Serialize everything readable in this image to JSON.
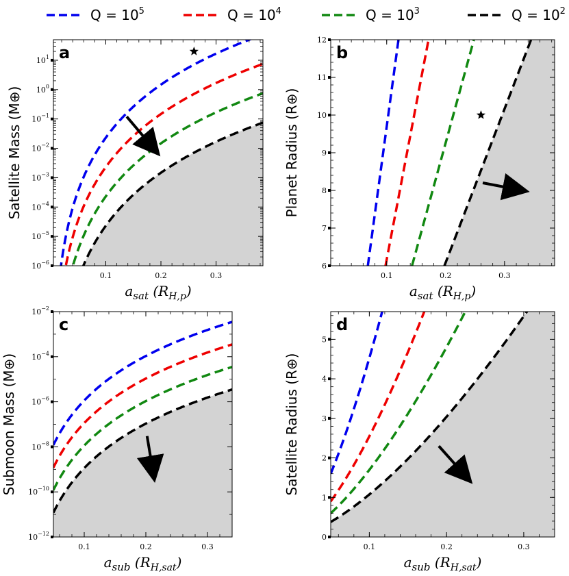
{
  "legend": [
    {
      "label": "Q = 10",
      "exp": "5",
      "color": "#0000ee"
    },
    {
      "label": "Q = 10",
      "exp": "4",
      "color": "#ee0000"
    },
    {
      "label": "Q = 10",
      "exp": "3",
      "color": "#118811"
    },
    {
      "label": "Q = 10",
      "exp": "2",
      "color": "#000000"
    }
  ],
  "colors": {
    "shade": "#d3d3d3",
    "axes": "#000000"
  },
  "chart_data": [
    {
      "panel": "a",
      "type": "line",
      "yscale": "log",
      "xlabel": "a_sat (R_H,p)",
      "ylabel": "Satellite Mass (M⊕)",
      "xlim": [
        0.005,
        0.385
      ],
      "ylim": [
        1e-06,
        50
      ],
      "xticks": [
        0.1,
        0.2,
        0.3
      ],
      "xtick_labels": [
        "0.1",
        "0.2",
        "0.3"
      ],
      "yticks": [
        1e-06,
        1e-05,
        0.0001,
        0.001,
        0.01,
        0.1,
        1,
        10
      ],
      "ytick_labels": [
        [
          "10",
          "−6"
        ],
        [
          "10",
          "−5"
        ],
        [
          "10",
          "−4"
        ],
        [
          "10",
          "−3"
        ],
        [
          "10",
          "−2"
        ],
        [
          "10",
          "−1"
        ],
        [
          "10",
          "0"
        ],
        [
          "10",
          "1"
        ]
      ],
      "series": [
        {
          "name": "Q = 10^5",
          "power": 6.0,
          "coef": 23000.0,
          "xmin": 0.005
        },
        {
          "name": "Q = 10^4",
          "power": 6.0,
          "coef": 2300.0,
          "xmin": 0.008
        },
        {
          "name": "Q = 10^3",
          "power": 6.0,
          "coef": 230.0,
          "xmin": 0.012
        },
        {
          "name": "Q = 10^2",
          "power": 6.0,
          "coef": 23.0,
          "xmin": 0.02
        }
      ],
      "star": [
        0.26,
        20
      ],
      "arrow": {
        "from": [
          0.138,
          0.12
        ],
        "to": [
          0.183,
          0.012
        ]
      }
    },
    {
      "panel": "b",
      "type": "line",
      "yscale": "linear",
      "xlabel": "a_sat (R_H,p)",
      "ylabel": "Planet Radius (R⊕)",
      "xlim": [
        0.005,
        0.385
      ],
      "ylim": [
        6,
        12
      ],
      "xticks": [
        0.1,
        0.2,
        0.3
      ],
      "xtick_labels": [
        "0.1",
        "0.2",
        "0.3"
      ],
      "yticks": [
        6,
        7,
        8,
        9,
        10,
        11,
        12
      ],
      "ytick_labels": [
        "6",
        "7",
        "8",
        "9",
        "10",
        "11",
        "12"
      ],
      "series": [
        {
          "name": "Q = 10^5",
          "x": [
            0.068,
            0.12
          ],
          "y": [
            6,
            12
          ]
        },
        {
          "name": "Q = 10^4",
          "x": [
            0.098,
            0.171
          ],
          "y": [
            6,
            12
          ]
        },
        {
          "name": "Q = 10^3",
          "x": [
            0.143,
            0.248
          ],
          "y": [
            6,
            12
          ]
        },
        {
          "name": "Q = 10^2",
          "x": [
            0.198,
            0.345
          ],
          "y": [
            6,
            12
          ]
        }
      ],
      "star": [
        0.26,
        10
      ],
      "arrow": {
        "from": [
          0.263,
          8.2
        ],
        "to": [
          0.32,
          8.03
        ]
      }
    },
    {
      "panel": "c",
      "type": "line",
      "yscale": "log",
      "xlabel": "a_sub (R_H,sat)",
      "ylabel": "Submoon Mass (M⊕)",
      "xlim": [
        0.05,
        0.34
      ],
      "ylim": [
        1e-12,
        0.01
      ],
      "xticks": [
        0.1,
        0.2,
        0.3
      ],
      "xtick_labels": [
        "0.1",
        "0.2",
        "0.3"
      ],
      "yticks": [
        1e-12,
        1e-10,
        1e-08,
        1e-06,
        0.0001,
        0.01
      ],
      "ytick_labels": [
        [
          "10",
          "−12"
        ],
        [
          "10",
          "−10"
        ],
        [
          "10",
          "−8"
        ],
        [
          "10",
          "−6"
        ],
        [
          "10",
          "−4"
        ],
        [
          "10",
          "−2"
        ]
      ],
      "series": [
        {
          "name": "Q = 10^5",
          "y0": 1.2e-08,
          "y1": 0.0035
        },
        {
          "name": "Q = 10^4",
          "y0": 1.2e-09,
          "y1": 0.00035
        },
        {
          "name": "Q = 10^3",
          "y0": 1.2e-10,
          "y1": 3.5e-05
        },
        {
          "name": "Q = 10^2",
          "y0": 1.2e-11,
          "y1": 3.5e-06
        }
      ],
      "arrow": {
        "from": [
          0.202,
          3e-08
        ],
        "to": [
          0.211,
          1e-09
        ]
      }
    },
    {
      "panel": "d",
      "type": "line",
      "yscale": "linear",
      "xlabel": "a_sub (R_H,sat)",
      "ylabel": "Satellite Radius (R⊕)",
      "xlim": [
        0.05,
        0.34
      ],
      "ylim": [
        0,
        5.7
      ],
      "xticks": [
        0.1,
        0.2,
        0.3
      ],
      "xtick_labels": [
        "0.1",
        "0.2",
        "0.3"
      ],
      "yticks": [
        0,
        1,
        2,
        3,
        4,
        5
      ],
      "ytick_labels": [
        "0",
        "1",
        "2",
        "3",
        "4",
        "5"
      ],
      "series": [
        {
          "name": "Q = 10^5",
          "y0": 1.6,
          "k": 2.0
        },
        {
          "name": "Q = 10^4",
          "y0": 0.9,
          "k": 2.0
        },
        {
          "name": "Q = 10^3",
          "y0": 0.6,
          "k": 2.0
        },
        {
          "name": "Q = 10^2",
          "y0": 0.38,
          "k": 2.0
        }
      ],
      "arrow": {
        "from": [
          0.19,
          2.3
        ],
        "to": [
          0.222,
          1.6
        ]
      }
    }
  ],
  "panel_labels": [
    "a",
    "b",
    "c",
    "d"
  ]
}
